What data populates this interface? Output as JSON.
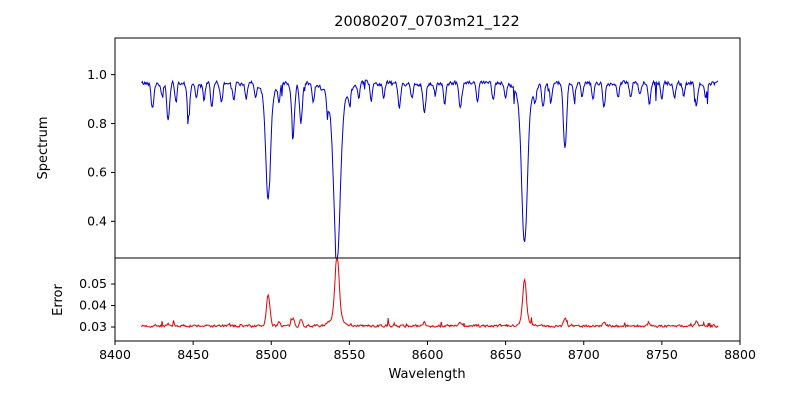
{
  "title": "20080207_0703m21_122",
  "chart_data": [
    {
      "type": "line",
      "panel": "spectrum",
      "series_name": "spectrum",
      "series_color": "#0000cd",
      "ylabel": "Spectrum",
      "xlim": [
        8400,
        8800
      ],
      "ylim": [
        0.25,
        1.15
      ],
      "yticks": [
        0.4,
        0.6,
        0.8,
        1.0
      ],
      "xticks": [
        8400,
        8450,
        8500,
        8550,
        8600,
        8650,
        8700,
        8750,
        8800
      ],
      "x_start": 8417,
      "x_end": 8786,
      "baseline": 0.965,
      "noise_amp": 0.014,
      "seed": 42,
      "grid": false,
      "legend": "none",
      "absorption_lines": [
        [
          8424,
          0.1,
          0.8
        ],
        [
          8430,
          0.06,
          0.7
        ],
        [
          8434,
          0.15,
          0.9
        ],
        [
          8439,
          0.08,
          0.7
        ],
        [
          8447,
          0.13,
          0.9
        ],
        [
          8452,
          0.06,
          0.7
        ],
        [
          8457,
          0.07,
          0.7
        ],
        [
          8462,
          0.1,
          0.8
        ],
        [
          8468,
          0.08,
          0.7
        ],
        [
          8476,
          0.06,
          0.7
        ],
        [
          8484,
          0.07,
          0.7
        ],
        [
          8490,
          0.05,
          0.7
        ],
        [
          8498.0,
          0.42,
          1.5
        ],
        [
          8498.0,
          0.05,
          4.0
        ],
        [
          8505,
          0.06,
          0.7
        ],
        [
          8514,
          0.2,
          1.0
        ],
        [
          8519,
          0.16,
          0.9
        ],
        [
          8527,
          0.07,
          0.7
        ],
        [
          8536,
          0.06,
          0.8
        ],
        [
          8542.1,
          0.63,
          2.0
        ],
        [
          8542.1,
          0.1,
          5.5
        ],
        [
          8550,
          0.05,
          0.7
        ],
        [
          8556,
          0.06,
          0.7
        ],
        [
          8564,
          0.07,
          0.7
        ],
        [
          8572,
          0.06,
          0.7
        ],
        [
          8582,
          0.1,
          0.8
        ],
        [
          8590,
          0.06,
          0.7
        ],
        [
          8598,
          0.13,
          0.9
        ],
        [
          8605,
          0.05,
          0.7
        ],
        [
          8611,
          0.08,
          0.7
        ],
        [
          8621,
          0.1,
          0.8
        ],
        [
          8632,
          0.07,
          0.7
        ],
        [
          8642,
          0.07,
          0.7
        ],
        [
          8650,
          0.06,
          0.7
        ],
        [
          8662.1,
          0.59,
          1.8
        ],
        [
          8662.1,
          0.07,
          4.5
        ],
        [
          8669,
          0.06,
          0.7
        ],
        [
          8674,
          0.1,
          0.8
        ],
        [
          8679,
          0.08,
          0.7
        ],
        [
          8688,
          0.27,
          1.0
        ],
        [
          8694,
          0.06,
          0.7
        ],
        [
          8699,
          0.06,
          0.7
        ],
        [
          8706,
          0.07,
          0.7
        ],
        [
          8713,
          0.09,
          0.8
        ],
        [
          8722,
          0.06,
          0.7
        ],
        [
          8730,
          0.06,
          0.7
        ],
        [
          8736,
          0.05,
          0.7
        ],
        [
          8742,
          0.08,
          0.8
        ],
        [
          8750,
          0.06,
          0.7
        ],
        [
          8758,
          0.06,
          0.7
        ],
        [
          8764,
          0.05,
          0.7
        ],
        [
          8772,
          0.09,
          0.8
        ],
        [
          8778,
          0.06,
          0.7
        ]
      ]
    },
    {
      "type": "line",
      "panel": "error",
      "series_name": "error",
      "series_color": "#e60000",
      "ylabel": "Error",
      "xlabel": "Wavelength",
      "xlim": [
        8400,
        8800
      ],
      "ylim": [
        0.0235,
        0.0621
      ],
      "yticks": [
        0.03,
        0.04,
        0.05
      ],
      "xticks": [
        8400,
        8450,
        8500,
        8550,
        8600,
        8650,
        8700,
        8750,
        8800
      ],
      "x_start": 8417,
      "x_end": 8786,
      "baseline": 0.0305,
      "noise_amp": 0.0009,
      "seed": 7,
      "grid": false,
      "legend": "none",
      "peaks": [
        [
          8498,
          0.0145,
          1.1
        ],
        [
          8505,
          0.002,
          0.8
        ],
        [
          8514,
          0.0035,
          0.9
        ],
        [
          8519,
          0.003,
          0.8
        ],
        [
          8542.1,
          0.029,
          1.3
        ],
        [
          8542.1,
          0.004,
          4.0
        ],
        [
          8598,
          0.002,
          0.8
        ],
        [
          8621,
          0.0015,
          0.8
        ],
        [
          8662.1,
          0.019,
          1.1
        ],
        [
          8662.1,
          0.003,
          3.0
        ],
        [
          8688,
          0.004,
          0.9
        ],
        [
          8713,
          0.0015,
          0.8
        ],
        [
          8742,
          0.0015,
          0.8
        ],
        [
          8772,
          0.002,
          0.8
        ]
      ]
    }
  ]
}
